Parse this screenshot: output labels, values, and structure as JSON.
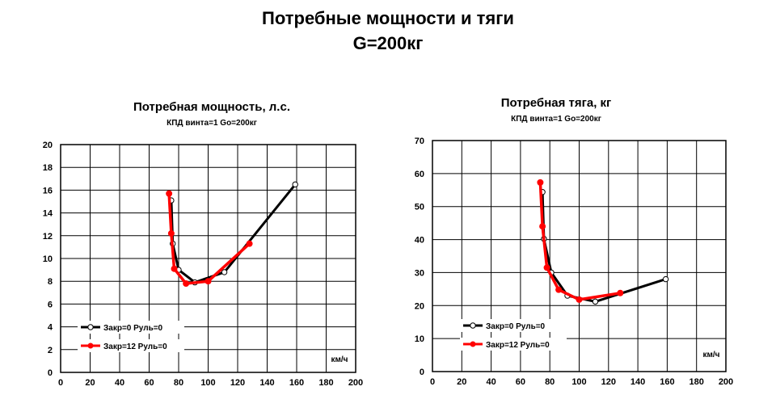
{
  "page": {
    "title": "Потребные мощности и тяги",
    "subtitle": "G=200кг"
  },
  "chart_data": [
    {
      "type": "line",
      "title": "Потребная мощность, л.с.",
      "subtitle": "КПД винта=1   Go=200кг",
      "xlabel": "км/ч",
      "ylabel": "",
      "xlim": [
        0,
        200
      ],
      "ylim": [
        0,
        20
      ],
      "xticks": [
        0,
        20,
        40,
        60,
        80,
        100,
        120,
        140,
        160,
        180,
        200
      ],
      "yticks": [
        0,
        2,
        4,
        6,
        8,
        10,
        12,
        14,
        16,
        18,
        20
      ],
      "grid": true,
      "legend_position": "bottom-left",
      "series": [
        {
          "name": "Закр=0 Руль=0",
          "color": "#000000",
          "marker": "open-circle",
          "x": [
            75,
            76,
            80,
            91,
            111,
            159
          ],
          "y": [
            15.1,
            11.3,
            9.0,
            7.9,
            8.8,
            16.5
          ]
        },
        {
          "name": "Закр=12 Руль=0",
          "color": "#ff0000",
          "marker": "filled-circle",
          "x": [
            73.5,
            75,
            77,
            85,
            100,
            128
          ],
          "y": [
            15.7,
            12.2,
            9.1,
            7.8,
            8.0,
            11.3
          ]
        }
      ]
    },
    {
      "type": "line",
      "title": "Потребная тяга, кг",
      "subtitle": "КПД винта=1   Go=200кг",
      "xlabel": "км/ч",
      "ylabel": "",
      "xlim": [
        0,
        200
      ],
      "ylim": [
        0,
        70
      ],
      "xticks": [
        0,
        20,
        40,
        60,
        80,
        100,
        120,
        140,
        160,
        180,
        200
      ],
      "yticks": [
        0,
        10,
        20,
        30,
        40,
        50,
        60,
        70
      ],
      "grid": true,
      "legend_position": "bottom-left",
      "series": [
        {
          "name": "Закр=0 Руль=0",
          "color": "#000000",
          "marker": "open-circle",
          "x": [
            75,
            76,
            81,
            92,
            111,
            159
          ],
          "y": [
            54.4,
            40.2,
            30.0,
            23.0,
            21.2,
            28.0
          ]
        },
        {
          "name": "Закр=12 Руль=0",
          "color": "#ff0000",
          "marker": "filled-circle",
          "x": [
            73.5,
            75,
            78,
            86,
            100,
            128
          ],
          "y": [
            57.3,
            44.0,
            31.5,
            24.8,
            21.8,
            23.8
          ]
        }
      ]
    }
  ]
}
